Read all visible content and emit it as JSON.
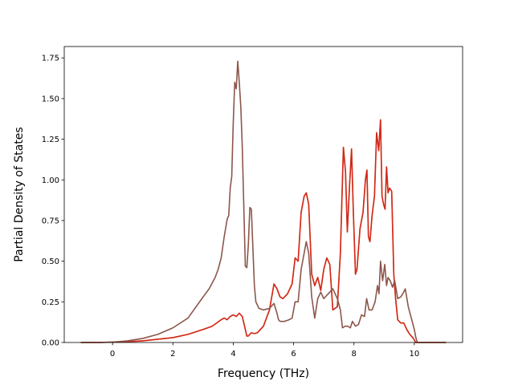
{
  "chart_data": {
    "type": "line",
    "title": "",
    "xlabel": "Frequency (THz)",
    "ylabel": "Partial Density of States",
    "xlim": [
      -1.6,
      11.6
    ],
    "ylim": [
      0,
      1.82
    ],
    "xticks": [
      0,
      2,
      4,
      6,
      8,
      10
    ],
    "yticks": [
      0.0,
      0.25,
      0.5,
      0.75,
      1.0,
      1.25,
      1.5,
      1.75
    ],
    "ytick_labels": [
      "0.00",
      "0.25",
      "0.50",
      "0.75",
      "1.00",
      "1.25",
      "1.50",
      "1.75"
    ],
    "grid": false,
    "legend": "none",
    "series": [
      {
        "color": "#e3a028",
        "x": [
          -1.05,
          -0.5,
          0,
          0.5,
          1,
          1.5,
          2,
          2.5,
          3,
          3.3,
          3.6,
          3.7,
          3.8,
          3.9,
          4.0,
          4.1,
          4.2,
          4.3,
          4.4,
          4.45,
          4.5,
          4.6,
          4.7,
          4.8,
          5.0,
          5.2,
          5.35,
          5.45,
          5.55,
          5.65,
          5.8,
          5.95,
          6.05,
          6.15,
          6.25,
          6.35,
          6.42,
          6.5,
          6.6,
          6.7,
          6.8,
          6.9,
          7.0,
          7.1,
          7.2,
          7.3,
          7.45,
          7.55,
          7.65,
          7.72,
          7.78,
          7.85,
          7.92,
          7.98,
          8.05,
          8.1,
          8.2,
          8.3,
          8.38,
          8.43,
          8.48,
          8.53,
          8.6,
          8.68,
          8.75,
          8.82,
          8.88,
          8.93,
          8.98,
          9.03,
          9.08,
          9.13,
          9.18,
          9.25,
          9.32,
          9.38,
          9.45,
          9.55,
          9.65,
          9.75,
          9.85,
          9.95,
          10.05,
          10.1,
          10.3,
          11.05
        ],
        "y": [
          0,
          0,
          0.002,
          0.005,
          0.01,
          0.02,
          0.03,
          0.05,
          0.08,
          0.1,
          0.14,
          0.15,
          0.14,
          0.16,
          0.17,
          0.16,
          0.18,
          0.16,
          0.08,
          0.04,
          0.04,
          0.06,
          0.055,
          0.06,
          0.1,
          0.2,
          0.36,
          0.33,
          0.28,
          0.27,
          0.3,
          0.36,
          0.52,
          0.5,
          0.8,
          0.9,
          0.92,
          0.85,
          0.42,
          0.35,
          0.4,
          0.32,
          0.45,
          0.52,
          0.48,
          0.2,
          0.22,
          0.55,
          1.2,
          1.05,
          0.68,
          0.95,
          1.19,
          0.8,
          0.42,
          0.45,
          0.7,
          0.8,
          1.0,
          1.06,
          0.65,
          0.62,
          0.78,
          0.9,
          1.29,
          1.18,
          1.37,
          0.9,
          0.85,
          0.82,
          1.08,
          0.92,
          0.95,
          0.93,
          0.42,
          0.27,
          0.14,
          0.12,
          0.12,
          0.08,
          0.05,
          0.03,
          0,
          0,
          0,
          0
        ]
      },
      {
        "color": "#d2281e",
        "x": [
          -1.05,
          -0.5,
          0,
          0.5,
          1,
          1.5,
          2,
          2.5,
          3,
          3.3,
          3.6,
          3.7,
          3.8,
          3.9,
          4.0,
          4.1,
          4.2,
          4.3,
          4.4,
          4.45,
          4.5,
          4.6,
          4.7,
          4.8,
          5.0,
          5.2,
          5.35,
          5.45,
          5.55,
          5.65,
          5.8,
          5.95,
          6.05,
          6.15,
          6.25,
          6.35,
          6.42,
          6.5,
          6.6,
          6.7,
          6.8,
          6.9,
          7.0,
          7.1,
          7.2,
          7.3,
          7.45,
          7.55,
          7.65,
          7.72,
          7.78,
          7.85,
          7.92,
          7.98,
          8.05,
          8.1,
          8.2,
          8.3,
          8.38,
          8.43,
          8.48,
          8.53,
          8.6,
          8.68,
          8.75,
          8.82,
          8.88,
          8.93,
          8.98,
          9.03,
          9.08,
          9.13,
          9.18,
          9.25,
          9.32,
          9.38,
          9.45,
          9.55,
          9.65,
          9.75,
          9.85,
          9.95,
          10.05,
          10.1,
          10.3,
          11.05
        ],
        "y": [
          0,
          0,
          0.002,
          0.005,
          0.01,
          0.02,
          0.03,
          0.05,
          0.08,
          0.1,
          0.14,
          0.15,
          0.14,
          0.16,
          0.17,
          0.16,
          0.18,
          0.16,
          0.08,
          0.04,
          0.04,
          0.06,
          0.055,
          0.06,
          0.1,
          0.2,
          0.36,
          0.33,
          0.28,
          0.27,
          0.3,
          0.36,
          0.52,
          0.5,
          0.8,
          0.9,
          0.92,
          0.85,
          0.42,
          0.35,
          0.4,
          0.32,
          0.45,
          0.52,
          0.48,
          0.2,
          0.22,
          0.55,
          1.2,
          1.05,
          0.68,
          0.95,
          1.19,
          0.8,
          0.42,
          0.45,
          0.7,
          0.8,
          1.0,
          1.06,
          0.65,
          0.62,
          0.78,
          0.9,
          1.29,
          1.18,
          1.37,
          0.9,
          0.85,
          0.82,
          1.08,
          0.92,
          0.95,
          0.93,
          0.42,
          0.27,
          0.14,
          0.12,
          0.12,
          0.08,
          0.05,
          0.03,
          0,
          0,
          0,
          0
        ]
      },
      {
        "color": "#8c564b",
        "x": [
          -1.05,
          -0.5,
          0,
          0.5,
          1,
          1.5,
          2,
          2.5,
          3,
          3.2,
          3.4,
          3.5,
          3.6,
          3.7,
          3.8,
          3.85,
          3.9,
          3.95,
          4.0,
          4.05,
          4.1,
          4.15,
          4.2,
          4.25,
          4.3,
          4.4,
          4.45,
          4.5,
          4.55,
          4.6,
          4.7,
          4.75,
          4.85,
          5.0,
          5.2,
          5.35,
          5.45,
          5.5,
          5.55,
          5.7,
          5.85,
          5.95,
          6.05,
          6.15,
          6.25,
          6.35,
          6.42,
          6.5,
          6.6,
          6.7,
          6.8,
          6.9,
          7.0,
          7.15,
          7.3,
          7.45,
          7.55,
          7.62,
          7.7,
          7.8,
          7.88,
          7.95,
          8.05,
          8.15,
          8.25,
          8.35,
          8.42,
          8.5,
          8.6,
          8.7,
          8.78,
          8.83,
          8.88,
          8.95,
          9.02,
          9.08,
          9.13,
          9.2,
          9.28,
          9.35,
          9.45,
          9.55,
          9.62,
          9.7,
          9.8,
          9.9,
          10.0,
          10.05,
          10.1,
          10.3,
          11.05
        ],
        "y": [
          0,
          0,
          0.002,
          0.01,
          0.025,
          0.05,
          0.09,
          0.15,
          0.28,
          0.33,
          0.4,
          0.45,
          0.52,
          0.65,
          0.76,
          0.78,
          0.95,
          1.02,
          1.35,
          1.6,
          1.56,
          1.73,
          1.6,
          1.45,
          1.2,
          0.47,
          0.46,
          0.6,
          0.83,
          0.82,
          0.35,
          0.25,
          0.21,
          0.2,
          0.21,
          0.24,
          0.18,
          0.14,
          0.13,
          0.13,
          0.14,
          0.15,
          0.25,
          0.25,
          0.45,
          0.55,
          0.62,
          0.55,
          0.28,
          0.15,
          0.27,
          0.31,
          0.27,
          0.3,
          0.33,
          0.27,
          0.2,
          0.09,
          0.1,
          0.1,
          0.09,
          0.13,
          0.1,
          0.11,
          0.17,
          0.16,
          0.27,
          0.2,
          0.2,
          0.25,
          0.35,
          0.3,
          0.5,
          0.38,
          0.48,
          0.35,
          0.4,
          0.38,
          0.34,
          0.38,
          0.27,
          0.28,
          0.3,
          0.33,
          0.22,
          0.15,
          0.08,
          0.03,
          0,
          0,
          0
        ]
      }
    ]
  }
}
